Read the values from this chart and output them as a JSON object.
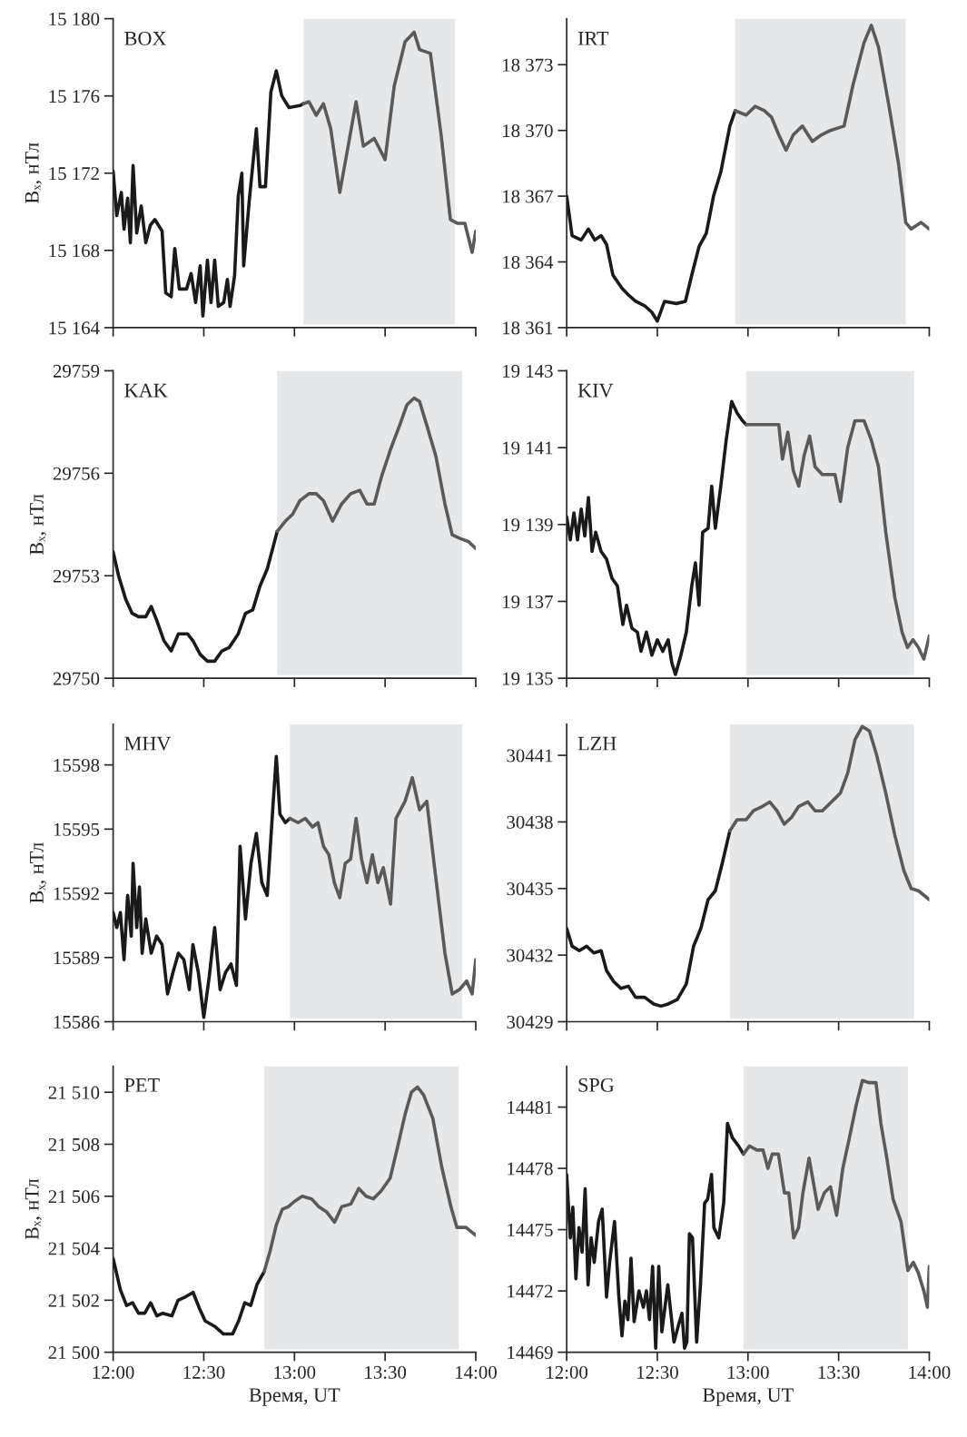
{
  "chart_data": [
    {
      "type": "line",
      "annotations": [
        "BOX"
      ],
      "ylabel": "Bₓ, нТл",
      "xlim": [
        12,
        14
      ],
      "xticks": [
        {
          "value": 12,
          "label": null
        },
        {
          "value": 12.5,
          "label": null
        },
        {
          "value": 13,
          "label": null
        },
        {
          "value": 13.5,
          "label": null
        },
        {
          "value": 14,
          "label": null
        }
      ],
      "ylim": [
        15164,
        15180
      ],
      "yticks": [
        {
          "value": 15164,
          "label": "15 164"
        },
        {
          "value": 15168,
          "label": "15 168"
        },
        {
          "value": 15172,
          "label": "15 172"
        },
        {
          "value": 15176,
          "label": "15 176"
        },
        {
          "value": 15180,
          "label": "15 180"
        }
      ],
      "tick_labels": "y",
      "grid": false,
      "legend": false,
      "line_style": "solid",
      "bands": [
        {
          "axis": "x",
          "from": 13.05,
          "to": 13.885,
          "color": "#e6e7e9"
        }
      ],
      "series": [
        {
          "color": "#1a1a1a",
          "x": [
            12.0,
            12.02,
            12.045,
            12.06,
            12.08,
            12.095,
            12.11,
            12.13,
            12.155,
            12.18,
            12.205,
            12.23,
            12.27,
            12.29,
            12.32,
            12.34,
            12.365,
            12.405,
            12.43,
            12.455,
            12.48,
            12.495,
            12.52,
            12.54,
            12.56,
            12.58,
            12.61,
            12.63,
            12.645,
            12.67,
            12.69,
            12.71,
            12.72,
            12.75,
            12.79,
            12.81,
            12.84,
            12.87,
            12.9,
            12.93,
            12.97,
            13.03,
            13.05
          ],
          "values": [
            15172.1,
            15169.8,
            15171,
            15169.1,
            15170.7,
            15168.4,
            15172.4,
            15168.9,
            15170.3,
            15168.4,
            15169.3,
            15169.6,
            15169,
            15165.8,
            15165.6,
            15168.1,
            15166,
            15166,
            15166.8,
            15165.3,
            15167.2,
            15164.6,
            15167.5,
            15165.3,
            15167.5,
            15165.1,
            15165.3,
            15166.5,
            15165.1,
            15166.7,
            15170.8,
            15172,
            15167.2,
            15170.5,
            15174.3,
            15171.3,
            15171.3,
            15176.2,
            15177.3,
            15176,
            15175.4,
            15175.5,
            15175.6
          ]
        },
        {
          "color": "#5a5a5a",
          "x": [
            13.05,
            13.08,
            13.12,
            13.16,
            13.2,
            13.25,
            13.3,
            13.34,
            13.38,
            13.44,
            13.5,
            13.55,
            13.61,
            13.66,
            13.69,
            13.75,
            13.81,
            13.86,
            13.9,
            13.94,
            13.98,
            14.0
          ],
          "values": [
            15175.6,
            15175.7,
            15175,
            15175.6,
            15174.3,
            15171,
            15173.6,
            15175.7,
            15173.4,
            15173.8,
            15172.7,
            15176.5,
            15178.8,
            15179.3,
            15178.4,
            15178.2,
            15173.9,
            15169.6,
            15169.4,
            15169.4,
            15167.9,
            15169
          ]
        }
      ]
    },
    {
      "type": "line",
      "annotations": [
        "IRT"
      ],
      "xlim": [
        12,
        14
      ],
      "xticks": [
        {
          "value": 12,
          "label": null
        },
        {
          "value": 12.5,
          "label": null
        },
        {
          "value": 13,
          "label": null
        },
        {
          "value": 13.5,
          "label": null
        },
        {
          "value": 14,
          "label": null
        }
      ],
      "ylim": [
        18361,
        18375.1
      ],
      "yticks": [
        {
          "value": 18361,
          "label": "18 361"
        },
        {
          "value": 18364,
          "label": "18 364"
        },
        {
          "value": 18367,
          "label": "18 367"
        },
        {
          "value": 18370,
          "label": "18 370"
        },
        {
          "value": 18373,
          "label": "18 373"
        }
      ],
      "tick_labels": "y",
      "grid": false,
      "legend": false,
      "line_style": "solid",
      "bands": [
        {
          "axis": "x",
          "from": 12.93,
          "to": 13.87,
          "color": "#e6e7e9"
        }
      ],
      "series": [
        {
          "color": "#1a1a1a",
          "x": [
            12.0,
            12.03,
            12.08,
            12.12,
            12.155,
            12.19,
            12.22,
            12.255,
            12.305,
            12.34,
            12.38,
            12.43,
            12.47,
            12.5,
            12.54,
            12.605,
            12.655,
            12.69,
            12.73,
            12.77,
            12.81,
            12.85,
            12.9,
            12.93
          ],
          "values": [
            18367.0,
            18365.2,
            18365.0,
            18365.5,
            18365.0,
            18365.2,
            18364.8,
            18363.4,
            18362.8,
            18362.5,
            18362.2,
            18362.0,
            18361.7,
            18361.3,
            18362.2,
            18362.1,
            18362.2,
            18363.4,
            18364.7,
            18365.3,
            18367.0,
            18368.1,
            18370.2,
            18370.9
          ]
        },
        {
          "color": "#5a5a5a",
          "x": [
            12.93,
            12.99,
            13.04,
            13.09,
            13.13,
            13.17,
            13.21,
            13.25,
            13.3,
            13.355,
            13.405,
            13.455,
            13.53,
            13.58,
            13.64,
            13.68,
            13.72,
            13.78,
            13.83,
            13.87,
            13.9,
            13.955,
            14.0
          ],
          "values": [
            18370.9,
            18370.7,
            18371.1,
            18370.9,
            18370.6,
            18369.8,
            18369.1,
            18369.8,
            18370.2,
            18369.5,
            18369.8,
            18370.0,
            18370.2,
            18372.1,
            18374.0,
            18374.8,
            18373.8,
            18371.0,
            18368.5,
            18365.8,
            18365.5,
            18365.8,
            18365.5
          ]
        }
      ]
    },
    {
      "type": "line",
      "annotations": [
        "KAK"
      ],
      "ylabel": "Bₓ, нТл",
      "xlim": [
        12,
        14
      ],
      "xticks": [
        {
          "value": 12,
          "label": null
        },
        {
          "value": 12.5,
          "label": null
        },
        {
          "value": 13,
          "label": null
        },
        {
          "value": 13.5,
          "label": null
        },
        {
          "value": 14,
          "label": null
        }
      ],
      "ylim": [
        29750,
        29759
      ],
      "yticks": [
        29750,
        29753,
        29756,
        29759
      ],
      "tick_labels": "y",
      "grid": false,
      "legend": false,
      "line_style": "solid",
      "bands": [
        {
          "axis": "x",
          "from": 12.905,
          "to": 13.925,
          "color": "#e6e7e9"
        }
      ],
      "series": [
        {
          "color": "#1a1a1a",
          "x": [
            12.0,
            12.03,
            12.07,
            12.105,
            12.14,
            12.18,
            12.21,
            12.24,
            12.28,
            12.32,
            12.36,
            12.41,
            12.44,
            12.48,
            12.52,
            12.56,
            12.6,
            12.64,
            12.69,
            12.73,
            12.77,
            12.81,
            12.85,
            12.89,
            12.905
          ],
          "values": [
            29753.7,
            29753.0,
            29752.3,
            29751.9,
            29751.8,
            29751.8,
            29752.1,
            29751.7,
            29751.1,
            29750.8,
            29751.3,
            29751.3,
            29751.1,
            29750.7,
            29750.5,
            29750.5,
            29750.8,
            29750.9,
            29751.3,
            29751.9,
            29752.0,
            29752.7,
            29753.2,
            29754.0,
            29754.3
          ]
        },
        {
          "color": "#5a5a5a",
          "x": [
            12.905,
            12.95,
            12.99,
            13.03,
            13.08,
            13.12,
            13.16,
            13.21,
            13.26,
            13.31,
            13.36,
            13.4,
            13.44,
            13.48,
            13.53,
            13.58,
            13.62,
            13.66,
            13.69,
            13.73,
            13.78,
            13.83,
            13.87,
            13.91,
            13.96,
            14.0
          ],
          "values": [
            29754.3,
            29754.6,
            29754.8,
            29755.2,
            29755.4,
            29755.4,
            29755.2,
            29754.6,
            29755.1,
            29755.4,
            29755.5,
            29755.1,
            29755.1,
            29755.9,
            29756.7,
            29757.4,
            29758.0,
            29758.2,
            29758.1,
            29757.4,
            29756.5,
            29755.1,
            29754.2,
            29754.1,
            29754.0,
            29753.8
          ]
        }
      ]
    },
    {
      "type": "line",
      "annotations": [
        "KIV"
      ],
      "xlim": [
        12,
        14
      ],
      "xticks": [
        {
          "value": 12,
          "label": null
        },
        {
          "value": 12.5,
          "label": null
        },
        {
          "value": 13,
          "label": null
        },
        {
          "value": 13.5,
          "label": null
        },
        {
          "value": 14,
          "label": null
        }
      ],
      "ylim": [
        19135,
        19143
      ],
      "yticks": [
        {
          "value": 19135,
          "label": "19 135"
        },
        {
          "value": 19137,
          "label": "19 137"
        },
        {
          "value": 19139,
          "label": "19 139"
        },
        {
          "value": 19141,
          "label": "19 141"
        },
        {
          "value": 19143,
          "label": "19 143"
        }
      ],
      "tick_labels": "y",
      "grid": false,
      "legend": false,
      "line_style": "solid",
      "bands": [
        {
          "axis": "x",
          "from": 12.99,
          "to": 13.915,
          "color": "#e6e7e9"
        }
      ],
      "series": [
        {
          "color": "#1a1a1a",
          "x": [
            12.0,
            12.02,
            12.04,
            12.06,
            12.08,
            12.1,
            12.12,
            12.14,
            12.16,
            12.19,
            12.22,
            12.25,
            12.28,
            12.31,
            12.33,
            12.36,
            12.39,
            12.41,
            12.44,
            12.47,
            12.5,
            12.53,
            12.56,
            12.58,
            12.6,
            12.63,
            12.66,
            12.69,
            12.71,
            12.73,
            12.75,
            12.78,
            12.8,
            12.82,
            12.85,
            12.88,
            12.91,
            12.94,
            12.97,
            12.99
          ],
          "values": [
            19139.2,
            19138.6,
            19139.3,
            19138.6,
            19139.4,
            19138.7,
            19139.7,
            19138.3,
            19138.8,
            19138.3,
            19138.1,
            19137.6,
            19137.4,
            19136.4,
            19136.9,
            19136.3,
            19136.2,
            19135.7,
            19136.2,
            19135.6,
            19136.0,
            19135.7,
            19136.0,
            19135.4,
            19135.1,
            19135.6,
            19136.2,
            19137.4,
            19138.0,
            19136.9,
            19138.8,
            19138.9,
            19140.0,
            19138.9,
            19140.0,
            19141.2,
            19142.2,
            19141.9,
            19141.7,
            19141.6
          ]
        },
        {
          "color": "#5a5a5a",
          "x": [
            12.99,
            13.04,
            13.09,
            13.14,
            13.17,
            13.19,
            13.22,
            13.25,
            13.28,
            13.31,
            13.34,
            13.37,
            13.41,
            13.45,
            13.48,
            13.51,
            13.55,
            13.59,
            13.64,
            13.68,
            13.72,
            13.76,
            13.81,
            13.85,
            13.88,
            13.91,
            13.94,
            13.97,
            14.0
          ],
          "values": [
            19141.6,
            19141.6,
            19141.6,
            19141.6,
            19141.6,
            19140.7,
            19141.4,
            19140.4,
            19140.0,
            19140.8,
            19141.3,
            19140.5,
            19140.3,
            19140.3,
            19140.3,
            19139.6,
            19141.0,
            19141.7,
            19141.7,
            19141.2,
            19140.5,
            19138.8,
            19137.1,
            19136.2,
            19135.8,
            19136.0,
            19135.8,
            19135.5,
            19136.1
          ]
        }
      ]
    },
    {
      "type": "line",
      "annotations": [
        "MHV"
      ],
      "ylabel": "Bₓ, нТл",
      "xlim": [
        12,
        14
      ],
      "xticks": [
        {
          "value": 12,
          "label": null
        },
        {
          "value": 12.5,
          "label": null
        },
        {
          "value": 13,
          "label": null
        },
        {
          "value": 13.5,
          "label": null
        },
        {
          "value": 14,
          "label": null
        }
      ],
      "ylim": [
        15586,
        15599.9
      ],
      "yticks": [
        15586,
        15589,
        15592,
        15595,
        15598
      ],
      "tick_labels": "y",
      "grid": false,
      "legend": false,
      "line_style": "solid",
      "bands": [
        {
          "axis": "x",
          "from": 12.975,
          "to": 13.925,
          "color": "#e6e7e9"
        }
      ],
      "series": [
        {
          "color": "#1a1a1a",
          "x": [
            12.0,
            12.02,
            12.04,
            12.06,
            12.08,
            12.1,
            12.11,
            12.13,
            12.145,
            12.16,
            12.18,
            12.21,
            12.24,
            12.27,
            12.3,
            12.33,
            12.36,
            12.39,
            12.42,
            12.44,
            12.47,
            12.5,
            12.53,
            12.56,
            12.59,
            12.62,
            12.65,
            12.68,
            12.7,
            12.73,
            12.76,
            12.79,
            12.82,
            12.85,
            12.88,
            12.9,
            12.92,
            12.95,
            12.975
          ],
          "values": [
            15591.1,
            15590.4,
            15591.1,
            15588.9,
            15591.9,
            15590.0,
            15593.4,
            15590.4,
            15592.3,
            15589.2,
            15590.8,
            15589.2,
            15590.0,
            15589.6,
            15587.3,
            15588.3,
            15589.2,
            15588.9,
            15587.5,
            15589.6,
            15588.3,
            15586.2,
            15588.1,
            15590.4,
            15587.5,
            15588.3,
            15588.7,
            15587.7,
            15594.2,
            15590.8,
            15593.4,
            15594.8,
            15592.5,
            15591.9,
            15595.9,
            15598.4,
            15595.7,
            15595.3,
            15595.5
          ]
        },
        {
          "color": "#5a5a5a",
          "x": [
            12.975,
            13.02,
            13.06,
            13.1,
            13.13,
            13.16,
            13.19,
            13.22,
            13.25,
            13.28,
            13.31,
            13.34,
            13.37,
            13.4,
            13.43,
            13.46,
            13.49,
            13.53,
            13.56,
            13.61,
            13.65,
            13.69,
            13.73,
            13.77,
            13.8,
            13.83,
            13.87,
            13.91,
            13.95,
            13.98,
            14.0
          ],
          "values": [
            15595.5,
            15595.3,
            15595.5,
            15595.1,
            15595.3,
            15594.2,
            15593.8,
            15592.5,
            15591.8,
            15593.4,
            15593.6,
            15595.5,
            15593.6,
            15592.5,
            15593.8,
            15592.5,
            15593.2,
            15591.5,
            15595.5,
            15596.3,
            15597.4,
            15595.9,
            15596.3,
            15593.4,
            15591.3,
            15589.2,
            15587.3,
            15587.5,
            15587.9,
            15587.3,
            15588.9
          ]
        }
      ]
    },
    {
      "type": "line",
      "annotations": [
        "LZH"
      ],
      "xlim": [
        12,
        14
      ],
      "xticks": [
        {
          "value": 12,
          "label": null
        },
        {
          "value": 12.5,
          "label": null
        },
        {
          "value": 13,
          "label": null
        },
        {
          "value": 13.5,
          "label": null
        },
        {
          "value": 14,
          "label": null
        }
      ],
      "ylim": [
        30429,
        30442.4
      ],
      "yticks": [
        30429,
        30432,
        30435,
        30438,
        30441
      ],
      "tick_labels": "y",
      "grid": false,
      "legend": false,
      "line_style": "solid",
      "bands": [
        {
          "axis": "x",
          "from": 12.9,
          "to": 13.915,
          "color": "#e6e7e9"
        }
      ],
      "series": [
        {
          "color": "#1a1a1a",
          "x": [
            12.0,
            12.03,
            12.07,
            12.11,
            12.15,
            12.19,
            12.22,
            12.26,
            12.3,
            12.34,
            12.38,
            12.43,
            12.48,
            12.52,
            12.56,
            12.61,
            12.66,
            12.7,
            12.74,
            12.78,
            12.82,
            12.86,
            12.9
          ],
          "values": [
            30433.2,
            30432.4,
            30432.2,
            30432.4,
            30432.1,
            30432.2,
            30431.3,
            30430.8,
            30430.5,
            30430.6,
            30430.1,
            30430.1,
            30429.8,
            30429.7,
            30429.8,
            30430.0,
            30430.7,
            30432.4,
            30433.2,
            30434.5,
            30434.9,
            30436.2,
            30437.6
          ]
        },
        {
          "color": "#5a5a5a",
          "x": [
            12.9,
            12.94,
            12.99,
            13.03,
            13.08,
            13.12,
            13.16,
            13.2,
            13.24,
            13.28,
            13.33,
            13.37,
            13.41,
            13.46,
            13.51,
            13.55,
            13.59,
            13.63,
            13.67,
            13.71,
            13.76,
            13.81,
            13.86,
            13.9,
            13.94,
            14.0
          ],
          "values": [
            30437.6,
            30438.1,
            30438.1,
            30438.5,
            30438.7,
            30438.9,
            30438.5,
            30437.9,
            30438.2,
            30438.7,
            30438.9,
            30438.5,
            30438.5,
            30438.9,
            30439.3,
            30440.2,
            30441.7,
            30442.3,
            30442.1,
            30441.0,
            30439.3,
            30437.4,
            30435.8,
            30435.0,
            30434.9,
            30434.5
          ]
        }
      ]
    },
    {
      "type": "line",
      "annotations": [
        "PET"
      ],
      "ylabel": "Bₓ, нТл",
      "xlabel": "Время, UT",
      "xlim": [
        12,
        14
      ],
      "xticks": [
        {
          "value": 12,
          "label": "12:00"
        },
        {
          "value": 12.5,
          "label": "12:30"
        },
        {
          "value": 13,
          "label": "13:00"
        },
        {
          "value": 13.5,
          "label": "13:30"
        },
        {
          "value": 14,
          "label": "14:00"
        }
      ],
      "ylim": [
        21500,
        21511
      ],
      "yticks": [
        {
          "value": 21500,
          "label": "21 500"
        },
        {
          "value": 21502,
          "label": "21 502"
        },
        {
          "value": 21504,
          "label": "21 504"
        },
        {
          "value": 21506,
          "label": "21 506"
        },
        {
          "value": 21508,
          "label": "21 508"
        },
        {
          "value": 21510,
          "label": "21 510"
        }
      ],
      "grid": false,
      "legend": false,
      "line_style": "solid",
      "bands": [
        {
          "axis": "x",
          "from": 12.833,
          "to": 13.906,
          "color": "#e6e7e9"
        }
      ],
      "series": [
        {
          "color": "#1a1a1a",
          "x": [
            12.0,
            12.04,
            12.074,
            12.107,
            12.14,
            12.174,
            12.207,
            12.241,
            12.274,
            12.324,
            12.358,
            12.391,
            12.441,
            12.475,
            12.508,
            12.559,
            12.609,
            12.659,
            12.692,
            12.726,
            12.759,
            12.793,
            12.833
          ],
          "values": [
            21503.6,
            21502.4,
            21501.8,
            21501.9,
            21501.5,
            21501.5,
            21501.9,
            21501.4,
            21501.5,
            21501.4,
            21502.0,
            21502.1,
            21502.3,
            21501.7,
            21501.2,
            21501.0,
            21500.7,
            21500.7,
            21501.2,
            21501.9,
            21501.8,
            21502.6,
            21503.1
          ]
        },
        {
          "color": "#5a5a5a",
          "x": [
            12.833,
            12.866,
            12.9,
            12.933,
            12.967,
            13.0,
            13.043,
            13.094,
            13.134,
            13.177,
            13.221,
            13.261,
            13.311,
            13.355,
            13.395,
            13.435,
            13.478,
            13.528,
            13.569,
            13.612,
            13.645,
            13.679,
            13.712,
            13.763,
            13.813,
            13.863,
            13.896,
            13.946,
            14.0
          ],
          "values": [
            21503.1,
            21503.9,
            21504.9,
            21505.5,
            21505.6,
            21505.8,
            21506.0,
            21505.9,
            21505.6,
            21505.4,
            21505.0,
            21505.6,
            21505.7,
            21506.3,
            21506.0,
            21505.9,
            21506.2,
            21506.7,
            21507.9,
            21509.2,
            21510.0,
            21510.2,
            21509.9,
            21509.0,
            21507.1,
            21505.6,
            21504.8,
            21504.8,
            21504.5
          ]
        }
      ]
    },
    {
      "type": "line",
      "annotations": [
        "SPG"
      ],
      "xlabel": "Время, UT",
      "xlim": [
        12,
        14
      ],
      "xticks": [
        {
          "value": 12,
          "label": "12:00"
        },
        {
          "value": 12.5,
          "label": "12:30"
        },
        {
          "value": 13,
          "label": "13:00"
        },
        {
          "value": 13.5,
          "label": "13:30"
        },
        {
          "value": 14,
          "label": "14:00"
        }
      ],
      "ylim": [
        14469,
        14483
      ],
      "yticks": [
        14469,
        14472,
        14475,
        14478,
        14481
      ],
      "grid": false,
      "legend": false,
      "line_style": "solid",
      "bands": [
        {
          "axis": "x",
          "from": 12.975,
          "to": 13.882,
          "color": "#e6e7e9"
        }
      ],
      "series": [
        {
          "color": "#1a1a1a",
          "x": [
            12.0,
            12.02,
            12.034,
            12.051,
            12.068,
            12.085,
            12.102,
            12.118,
            12.135,
            12.152,
            12.176,
            12.196,
            12.22,
            12.237,
            12.264,
            12.288,
            12.305,
            12.321,
            12.338,
            12.355,
            12.372,
            12.399,
            12.423,
            12.44,
            12.457,
            12.474,
            12.491,
            12.508,
            12.525,
            12.558,
            12.592,
            12.616,
            12.636,
            12.65,
            12.663,
            12.677,
            12.694,
            12.717,
            12.738,
            12.761,
            12.778,
            12.799,
            12.812,
            12.839,
            12.866,
            12.887,
            12.914,
            12.948,
            12.975
          ],
          "values": [
            14477.7,
            14474.6,
            14476.1,
            14472.6,
            14475.1,
            14473.9,
            14477.0,
            14472.3,
            14474.6,
            14473.4,
            14475.4,
            14476.0,
            14471.7,
            14473.4,
            14475.4,
            14471.7,
            14469.8,
            14471.5,
            14470.6,
            14473.6,
            14470.5,
            14472.0,
            14471.2,
            14472.0,
            14470.6,
            14473.2,
            14469.2,
            14473.2,
            14470.0,
            14472.3,
            14469.5,
            14470.3,
            14470.9,
            14469.2,
            14469.5,
            14474.8,
            14474.6,
            14469.5,
            14472.3,
            14476.3,
            14476.5,
            14477.7,
            14475.1,
            14474.6,
            14476.3,
            14480.2,
            14479.5,
            14479.1,
            14478.7
          ]
        },
        {
          "color": "#5a5a5a",
          "x": [
            12.975,
            13.008,
            13.049,
            13.083,
            13.11,
            13.134,
            13.168,
            13.201,
            13.225,
            13.252,
            13.279,
            13.303,
            13.337,
            13.371,
            13.387,
            13.421,
            13.455,
            13.489,
            13.523,
            13.557,
            13.597,
            13.631,
            13.665,
            13.706,
            13.733,
            13.766,
            13.8,
            13.844,
            13.882,
            13.912,
            13.939,
            13.97,
            13.99,
            14.0
          ],
          "values": [
            14478.7,
            14479.1,
            14478.9,
            14478.9,
            14478.0,
            14478.7,
            14478.7,
            14476.8,
            14476.8,
            14474.6,
            14475.1,
            14476.8,
            14478.5,
            14476.8,
            14476.0,
            14476.8,
            14477.1,
            14475.7,
            14478.0,
            14479.4,
            14481.1,
            14482.3,
            14482.2,
            14482.2,
            14480.2,
            14478.5,
            14476.5,
            14475.4,
            14473.0,
            14473.4,
            14472.9,
            14472.0,
            14471.2,
            14473.2
          ]
        }
      ]
    }
  ]
}
